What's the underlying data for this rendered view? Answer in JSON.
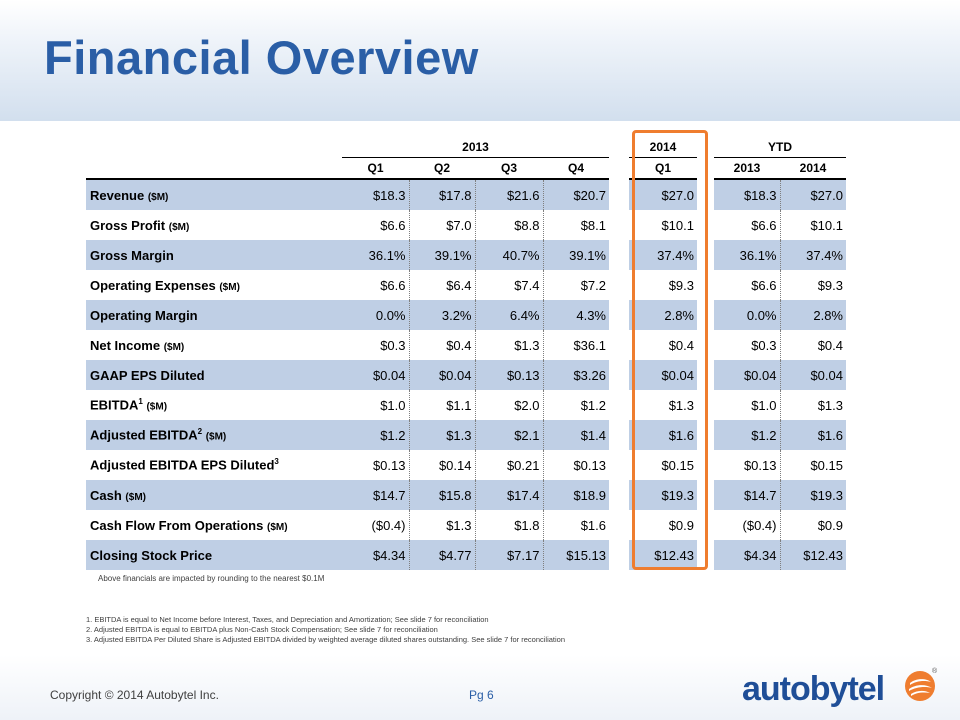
{
  "title": "Financial Overview",
  "columns": {
    "group_2013": "2013",
    "group_2014": "2014",
    "group_ytd": "YTD",
    "q1": "Q1",
    "q2": "Q2",
    "q3": "Q3",
    "q4": "Q4",
    "q1_2014": "Q1",
    "ytd_2013": "2013",
    "ytd_2014": "2014"
  },
  "rows": [
    {
      "label": "Revenue",
      "unit": "($M)",
      "sup": "",
      "values": [
        "$18.3",
        "$17.8",
        "$21.6",
        "$20.7",
        "$27.0",
        "$18.3",
        "$27.0"
      ]
    },
    {
      "label": "Gross Profit",
      "unit": "($M)",
      "sup": "",
      "values": [
        "$6.6",
        "$7.0",
        "$8.8",
        "$8.1",
        "$10.1",
        "$6.6",
        "$10.1"
      ]
    },
    {
      "label": "Gross Margin",
      "unit": "",
      "sup": "",
      "values": [
        "36.1%",
        "39.1%",
        "40.7%",
        "39.1%",
        "37.4%",
        "36.1%",
        "37.4%"
      ]
    },
    {
      "label": "Operating Expenses",
      "unit": "($M)",
      "sup": "",
      "values": [
        "$6.6",
        "$6.4",
        "$7.4",
        "$7.2",
        "$9.3",
        "$6.6",
        "$9.3"
      ]
    },
    {
      "label": "Operating Margin",
      "unit": "",
      "sup": "",
      "values": [
        "0.0%",
        "3.2%",
        "6.4%",
        "4.3%",
        "2.8%",
        "0.0%",
        "2.8%"
      ]
    },
    {
      "label": "Net Income",
      "unit": "($M)",
      "sup": "",
      "values": [
        "$0.3",
        "$0.4",
        "$1.3",
        "$36.1",
        "$0.4",
        "$0.3",
        "$0.4"
      ]
    },
    {
      "label": "GAAP EPS Diluted",
      "unit": "",
      "sup": "",
      "values": [
        "$0.04",
        "$0.04",
        "$0.13",
        "$3.26",
        "$0.04",
        "$0.04",
        "$0.04"
      ]
    },
    {
      "label": "EBITDA",
      "unit": "($M)",
      "sup": "1",
      "values": [
        "$1.0",
        "$1.1",
        "$2.0",
        "$1.2",
        "$1.3",
        "$1.0",
        "$1.3"
      ]
    },
    {
      "label": "Adjusted EBITDA",
      "unit": "($M)",
      "sup": "2",
      "values": [
        "$1.2",
        "$1.3",
        "$2.1",
        "$1.4",
        "$1.6",
        "$1.2",
        "$1.6"
      ]
    },
    {
      "label": "Adjusted EBITDA EPS Diluted",
      "unit": "",
      "sup": "3",
      "values": [
        "$0.13",
        "$0.14",
        "$0.21",
        "$0.13",
        "$0.15",
        "$0.13",
        "$0.15"
      ]
    },
    {
      "label": "Cash",
      "unit": "($M)",
      "sup": "",
      "values": [
        "$14.7",
        "$15.8",
        "$17.4",
        "$18.9",
        "$19.3",
        "$14.7",
        "$19.3"
      ]
    },
    {
      "label": "Cash Flow From Operations",
      "unit": "($M)",
      "sup": "",
      "values": [
        "($0.4)",
        "$1.3",
        "$1.8",
        "$1.6",
        "$0.9",
        "($0.4)",
        "$0.9"
      ]
    },
    {
      "label": "Closing Stock Price",
      "unit": "",
      "sup": "",
      "values": [
        "$4.34",
        "$4.77",
        "$7.17",
        "$15.13",
        "$12.43",
        "$4.34",
        "$12.43"
      ]
    }
  ],
  "rounding_note": "Above financials are impacted by rounding to the nearest $0.1M",
  "footnotes": [
    "1.  EBITDA is equal to Net Income before Interest, Taxes, and Depreciation and Amortization; See slide 7 for reconciliation",
    "2.  Adjusted EBITDA is equal to EBITDA plus Non-Cash Stock Compensation; See slide 7 for reconciliation",
    "3.  Adjusted EBITDA Per Diluted Share is Adjusted EBITDA divided by weighted average diluted shares outstanding. See slide 7 for reconciliation"
  ],
  "copyright": "Copyright © 2014 Autobytel Inc.",
  "page": "Pg 6",
  "logo_text": "autobytel",
  "colors": {
    "title": "#2a5ea6",
    "row_shade": "#bfcfe5",
    "highlight": "#ef7d2f",
    "logo": "#1f4e97",
    "logo_mark": "#ef7d2f"
  }
}
